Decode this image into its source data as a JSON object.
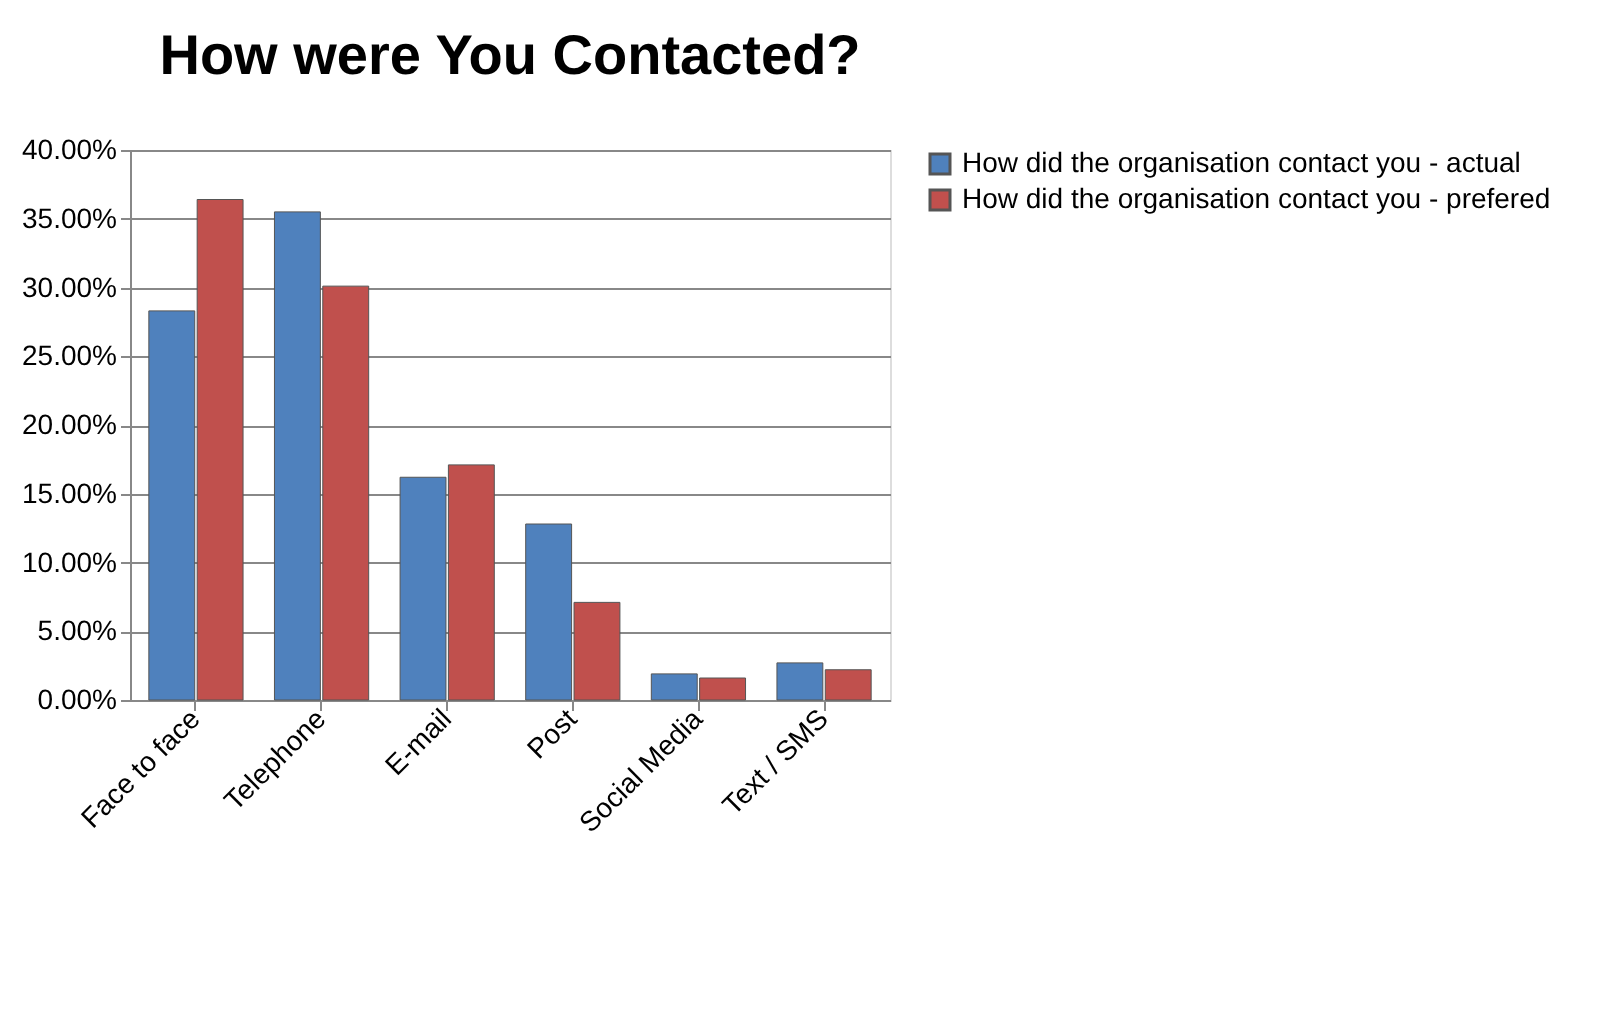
{
  "chart_data": {
    "type": "bar",
    "title": "How were You Contacted?",
    "categories": [
      "Face to face",
      "Telephone",
      "E-mail",
      "Post",
      "Social Media",
      "Text / SMS"
    ],
    "series": [
      {
        "name": "How did the organisation contact you - actual",
        "color": "#4f81bd",
        "values": [
          28.3,
          35.5,
          16.2,
          12.8,
          1.9,
          2.7
        ]
      },
      {
        "name": "How did  the organisation contact you - prefered",
        "color": "#c0504d",
        "values": [
          36.4,
          30.1,
          17.1,
          7.1,
          1.6,
          2.2
        ]
      }
    ],
    "ylim": [
      0,
      40
    ],
    "yticks": [
      {
        "value": 0,
        "label": "0.00%"
      },
      {
        "value": 5,
        "label": "5.00%"
      },
      {
        "value": 10,
        "label": "10.00%"
      },
      {
        "value": 15,
        "label": "15.00%"
      },
      {
        "value": 20,
        "label": "20.00%"
      },
      {
        "value": 25,
        "label": "25.00%"
      },
      {
        "value": 30,
        "label": "30.00%"
      },
      {
        "value": 35,
        "label": "35.00%"
      },
      {
        "value": 40,
        "label": "40.00%"
      }
    ],
    "grid": "y",
    "legend": "right"
  }
}
